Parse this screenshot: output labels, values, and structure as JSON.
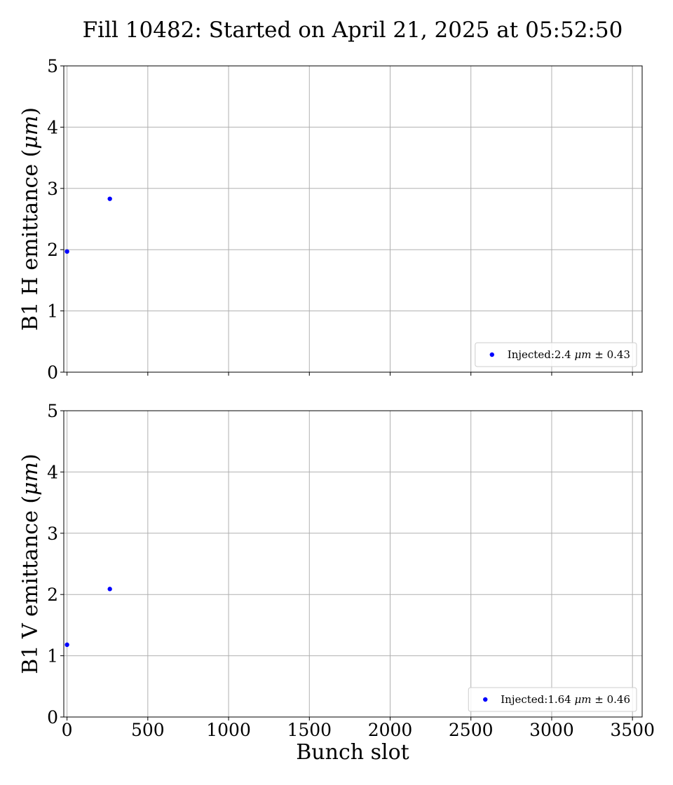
{
  "figure": {
    "title": "Fill 10482: Started on April 21, 2025 at 05:52:50",
    "shared_xlabel": "Bunch slot"
  },
  "colors": {
    "points": "#0000ff",
    "grid": "#b0b0b0",
    "axes": "#000000",
    "legend_border": "#cccccc"
  },
  "chart_data": [
    {
      "type": "scatter",
      "ylabel": "B1 H emittance (μm)",
      "ylabel_parts": {
        "prefix": "B1 H emittance (",
        "unit": "μm",
        "suffix": ")"
      },
      "xlabel": "",
      "xlim": [
        -20,
        3560
      ],
      "ylim": [
        0,
        5
      ],
      "xticks": [
        0,
        500,
        1000,
        1500,
        2000,
        2500,
        3000,
        3500
      ],
      "yticks": [
        0,
        1,
        2,
        3,
        4,
        5
      ],
      "show_xtick_labels": false,
      "grid": true,
      "legend_position": "lower-right",
      "series": [
        {
          "name": "Injected:2.4 μm ± 0.43",
          "name_parts": {
            "prefix": "Injected:2.4 ",
            "unit": "μm",
            "suffix": " ± 0.43"
          },
          "x": [
            0,
            265
          ],
          "y": [
            1.97,
            2.83
          ]
        }
      ]
    },
    {
      "type": "scatter",
      "ylabel": "B1 V emittance (μm)",
      "ylabel_parts": {
        "prefix": "B1 V emittance (",
        "unit": "μm",
        "suffix": ")"
      },
      "xlabel": "Bunch slot",
      "xlim": [
        -20,
        3560
      ],
      "ylim": [
        0,
        5
      ],
      "xticks": [
        0,
        500,
        1000,
        1500,
        2000,
        2500,
        3000,
        3500
      ],
      "yticks": [
        0,
        1,
        2,
        3,
        4,
        5
      ],
      "show_xtick_labels": true,
      "grid": true,
      "legend_position": "lower-right",
      "series": [
        {
          "name": "Injected:1.64 μm ± 0.46",
          "name_parts": {
            "prefix": "Injected:1.64 ",
            "unit": "μm",
            "suffix": " ± 0.46"
          },
          "x": [
            0,
            265
          ],
          "y": [
            1.18,
            2.09
          ]
        }
      ]
    }
  ]
}
